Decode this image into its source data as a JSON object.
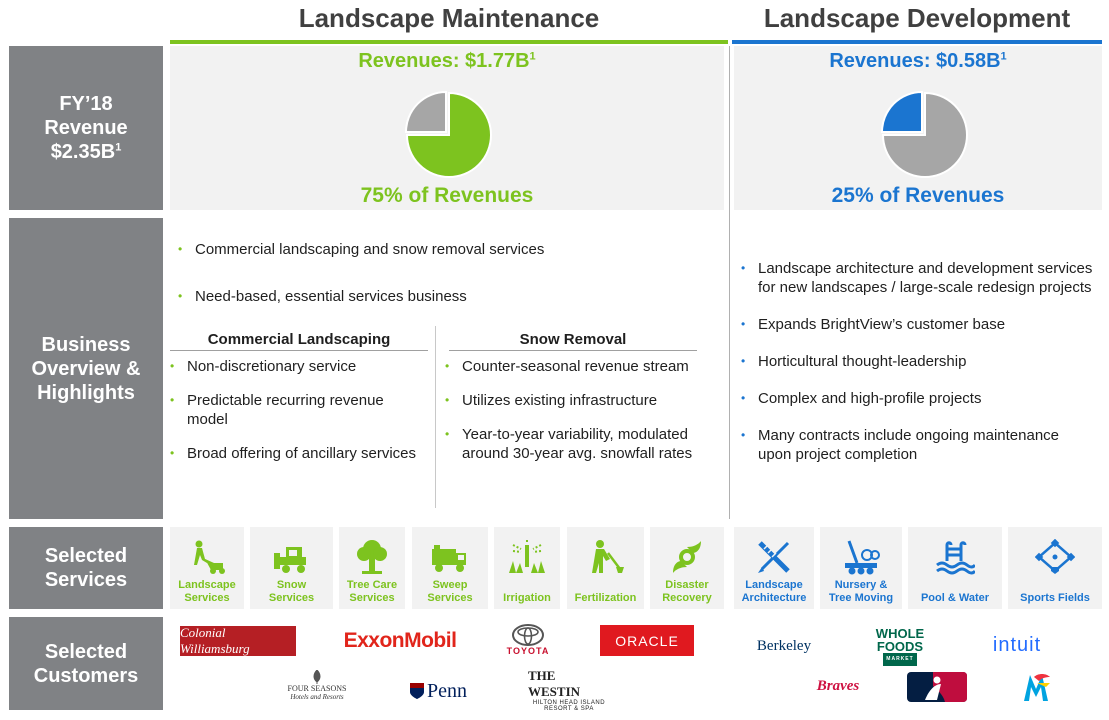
{
  "headers": {
    "maintenance": "Landscape Maintenance",
    "development": "Landscape Development"
  },
  "row_labels": {
    "revenue": [
      "FY’18",
      "Revenue",
      "$2.35B",
      "1"
    ],
    "overview": [
      "Business",
      "Overview &",
      "Highlights"
    ],
    "services": [
      "Selected",
      "Services"
    ],
    "customers": [
      "Selected",
      "Customers"
    ]
  },
  "maintenance": {
    "revenue_label": "Revenues: $1.77B",
    "revenue_sup": "1",
    "share_label": "75% of Revenues",
    "share": 0.75,
    "bullets": [
      "Commercial landscaping and snow removal services",
      "Need-based, essential services business"
    ],
    "commercial": {
      "title": "Commercial Landscaping",
      "items": [
        "Non-discretionary service",
        "Predictable recurring revenue model",
        "Broad offering of ancillary services"
      ]
    },
    "snow": {
      "title": "Snow Removal",
      "items": [
        "Counter-seasonal revenue stream",
        "Utilizes existing infrastructure",
        "Year-to-year variability, modulated around 30-year avg. snowfall rates"
      ]
    },
    "services": [
      {
        "line1": "Landscape",
        "line2": "Services",
        "icon": "mower-icon"
      },
      {
        "line1": "Snow",
        "line2": "Services",
        "icon": "snowplow-icon"
      },
      {
        "line1": "Tree Care",
        "line2": "Services",
        "icon": "tree-icon"
      },
      {
        "line1": "Sweep",
        "line2": "Services",
        "icon": "sweeper-truck-icon"
      },
      {
        "line1": "Irrigation",
        "line2": "",
        "icon": "sprinkler-icon"
      },
      {
        "line1": "Fertilization",
        "line2": "",
        "icon": "worker-shovel-icon"
      },
      {
        "line1": "Disaster",
        "line2": "Recovery",
        "icon": "hurricane-icon"
      }
    ],
    "customers": [
      "Colonial Williamsburg",
      "ExxonMobil",
      "TOYOTA",
      "ORACLE",
      "FOUR SEASONS",
      "Hotels and Resorts",
      "Penn",
      "THE WESTIN",
      "HILTON HEAD ISLAND",
      "RESORT & SPA"
    ]
  },
  "development": {
    "revenue_label": "Revenues: $0.58B",
    "revenue_sup": "1",
    "share_label": "25% of Revenues",
    "share": 0.25,
    "bullets": [
      "Landscape architecture and development services for new landscapes / large-scale redesign projects",
      "Expands BrightView’s customer base",
      "Horticultural thought-leadership",
      "Complex and high-profile projects",
      "Many contracts include ongoing maintenance upon project completion"
    ],
    "services": [
      {
        "line1": "Landscape",
        "line2": "Architecture",
        "icon": "drafting-tools-icon"
      },
      {
        "line1": "Nursery &",
        "line2": "Tree Moving",
        "icon": "tree-spade-icon"
      },
      {
        "line1": "",
        "line2": "Pool & Water",
        "icon": "pool-icon"
      },
      {
        "line1": "",
        "line2": "Sports Fields",
        "icon": "baseball-diamond-icon"
      }
    ],
    "customers": [
      "Berkeley",
      "WHOLE",
      "FOODS",
      "MARKET",
      "intuit",
      "Braves",
      "MLB",
      "Marlins"
    ]
  },
  "colors": {
    "maintenance": "#7dc31f",
    "development": "#1b75d0",
    "label_bg": "#808285",
    "panel_bg": "#f2f2f2",
    "pie_gray": "#a6a6a6"
  }
}
